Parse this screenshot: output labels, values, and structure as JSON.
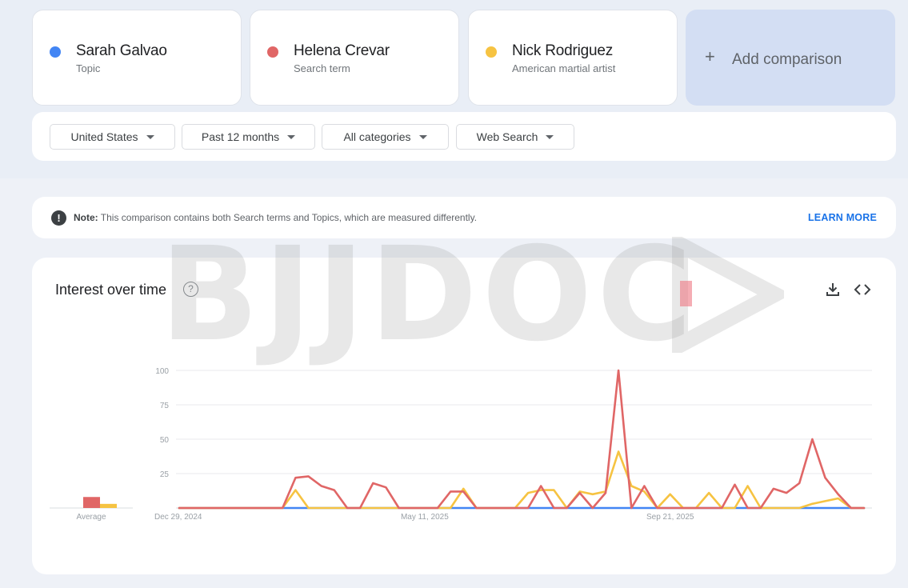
{
  "terms": [
    {
      "name": "Sarah Galvao",
      "sub": "Topic",
      "color": "#4285f4"
    },
    {
      "name": "Helena Crevar",
      "sub": "Search term",
      "color": "#e06666"
    },
    {
      "name": "Nick Rodriguez",
      "sub": "American martial artist",
      "color": "#f6c342"
    }
  ],
  "add_comparison": {
    "label": "Add comparison"
  },
  "filters": {
    "region": "United States",
    "time": "Past 12 months",
    "category": "All categories",
    "source": "Web Search"
  },
  "note": {
    "bold": "Note:",
    "text": "This comparison contains both Search terms and Topics, which are measured differently.",
    "link": "LEARN MORE"
  },
  "watermark": {
    "text": "BJJDOC"
  },
  "chart": {
    "title": "Interest over time",
    "help": "?",
    "average_label": "Average",
    "icons": [
      "download-icon",
      "embed-code-icon"
    ]
  },
  "chart_data": {
    "type": "line",
    "title": "Interest over time",
    "ylim": [
      0,
      100
    ],
    "y_ticks": [
      25,
      50,
      75,
      100
    ],
    "x_tick_labels": [
      "Dec 29, 2024",
      "May 11, 2025",
      "Sep 21, 2025"
    ],
    "x_tick_index": [
      0,
      19,
      38
    ],
    "grid": true,
    "series": [
      {
        "name": "Sarah Galvao",
        "color": "#4285f4",
        "average": 0,
        "values": [
          0,
          0,
          0,
          0,
          0,
          0,
          0,
          0,
          0,
          0,
          0,
          0,
          0,
          0,
          0,
          0,
          0,
          0,
          0,
          0,
          0,
          0,
          0,
          0,
          0,
          0,
          0,
          0,
          0,
          0,
          0,
          0,
          0,
          0,
          0,
          0,
          0,
          0,
          0,
          0,
          0,
          0,
          0,
          0,
          0,
          0,
          0,
          0,
          0,
          0,
          0,
          0,
          0,
          0
        ]
      },
      {
        "name": "Helena Crevar",
        "color": "#e06666",
        "average": 8,
        "values": [
          0,
          0,
          0,
          0,
          0,
          0,
          0,
          0,
          0,
          22,
          23,
          16,
          13,
          0,
          0,
          18,
          15,
          0,
          0,
          0,
          0,
          12,
          12,
          0,
          0,
          0,
          0,
          0,
          16,
          0,
          0,
          11,
          0,
          11,
          100,
          0,
          16,
          0,
          0,
          0,
          0,
          0,
          0,
          17,
          0,
          0,
          14,
          11,
          18,
          50,
          22,
          10,
          0,
          0
        ]
      },
      {
        "name": "Nick Rodriguez",
        "color": "#f6c342",
        "average": 3,
        "values": [
          0,
          0,
          0,
          0,
          0,
          0,
          0,
          0,
          0,
          13,
          0,
          0,
          0,
          0,
          0,
          0,
          0,
          0,
          0,
          0,
          0,
          0,
          14,
          0,
          0,
          0,
          0,
          11,
          13,
          13,
          0,
          12,
          10,
          12,
          41,
          16,
          12,
          0,
          10,
          0,
          0,
          11,
          0,
          0,
          16,
          0,
          0,
          0,
          0,
          3,
          5,
          7,
          0,
          0
        ]
      }
    ]
  }
}
